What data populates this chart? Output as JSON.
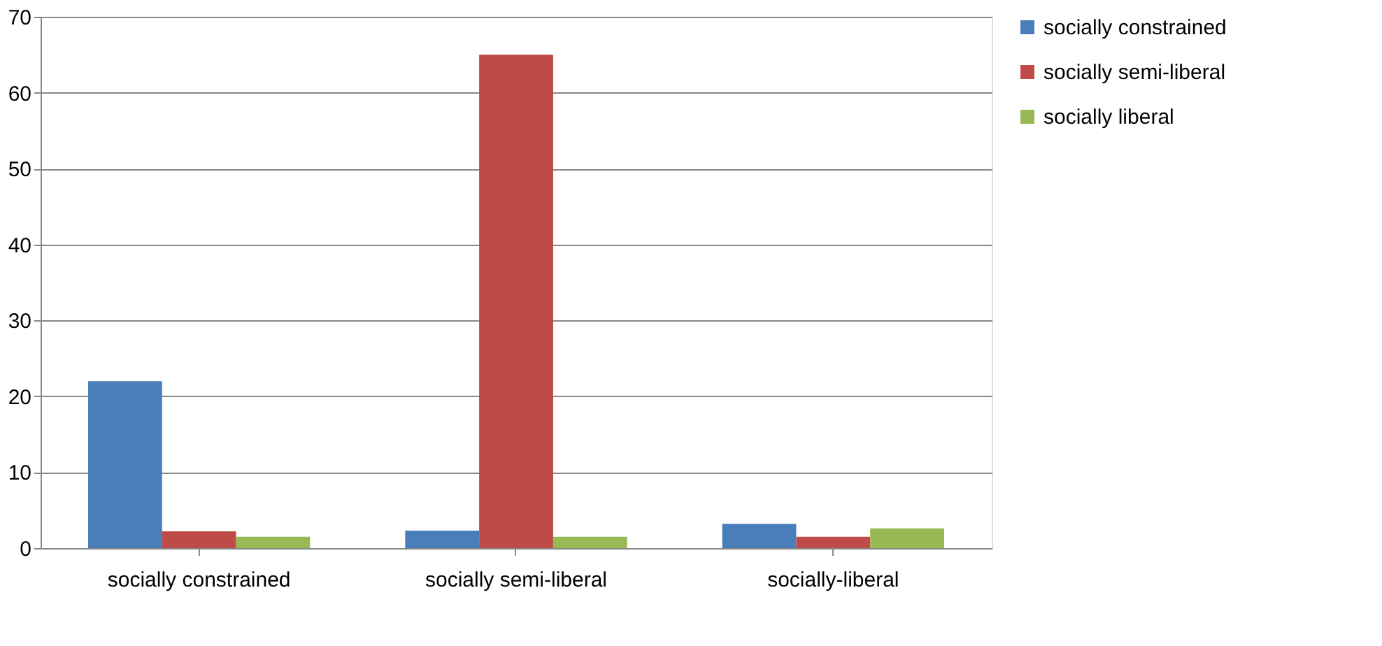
{
  "chart_data": {
    "type": "bar",
    "categories": [
      "socially constrained",
      "socially semi-liberal",
      "socially-liberal"
    ],
    "series": [
      {
        "name": "socially constrained",
        "color": "#4a7ebb",
        "values": [
          22,
          2.3,
          3.2
        ]
      },
      {
        "name": "socially semi-liberal",
        "color": "#be4b48",
        "values": [
          2.2,
          65,
          1.5
        ]
      },
      {
        "name": "socially liberal",
        "color": "#98b954",
        "values": [
          1.5,
          1.5,
          2.6
        ]
      }
    ],
    "ylim": [
      0,
      70
    ],
    "yticks": [
      0,
      10,
      20,
      30,
      40,
      50,
      60,
      70
    ],
    "grid": "y",
    "legend": "right"
  }
}
